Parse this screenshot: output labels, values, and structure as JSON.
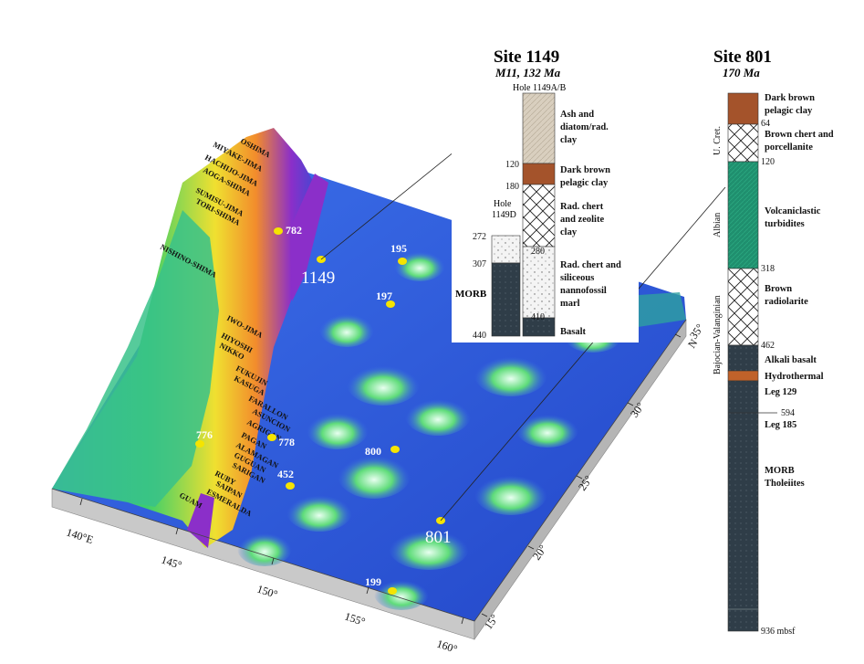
{
  "colors": {
    "ocean_deep": "#2c4fd6",
    "ocean_mid": "#3a6fe6",
    "ridge_green": "#35c46a",
    "ridge_yellow": "#f2e534",
    "ridge_orange": "#ef8a2a",
    "trench_purple": "#8b2fc9",
    "site_marker": "#f5e400",
    "base_gray": "#c9c9c9",
    "clay_brown": "#a4532b",
    "ash_tan": "#d9cfbf",
    "basalt_dark": "#2f3d48",
    "volcaniclastic_green": "#1f8f6e",
    "hydrothermal_orange": "#c0622a"
  },
  "map": {
    "islands": [
      "OSHIMA",
      "MIYAKE-JIMA",
      "HACHIJO-JIMA",
      "AOGA-SHIMA",
      "SUMISU-JIMA",
      "TORI-SHIMA",
      "NISHINO-SHIMA",
      "IWO-JIMA",
      "HIYOSHI",
      "NIKKO",
      "FUKUJIN",
      "KASUGA",
      "FARALLON",
      "ASUNCION",
      "AGRIGAN",
      "PAGAN",
      "ALAMAGAN",
      "GUGUAN",
      "SARIGAN",
      "RUBY",
      "SAIPAN",
      "ESMERALDA",
      "GUAM"
    ],
    "sites": [
      "782",
      "195",
      "1149",
      "197",
      "776",
      "778",
      "452",
      "800",
      "801",
      "199"
    ],
    "lon_ticks": [
      "140°E",
      "145°",
      "150°",
      "155°",
      "160°"
    ],
    "lat_ticks": [
      "35°",
      "N",
      "30°",
      "25°",
      "20°",
      "15°"
    ]
  },
  "site1149": {
    "title": "Site 1149",
    "subtitle": "M11, 132 Ma",
    "hole_ab": "Hole 1149A/B",
    "hole_d": "Hole\n1149D",
    "hole_d_line1": "Hole",
    "hole_d_line2": "1149D",
    "morb": "MORB",
    "depths_ab": [
      "120",
      "180",
      "280",
      "410"
    ],
    "depths_d": [
      "272",
      "307",
      "440"
    ],
    "units": [
      {
        "l1": "Ash and",
        "l2": "diatom/rad.",
        "l3": "clay"
      },
      {
        "l1": "Dark brown",
        "l2": "pelagic clay",
        "l3": ""
      },
      {
        "l1": "Rad. chert",
        "l2": "and zeolite",
        "l3": "clay"
      },
      {
        "l1": "Rad. chert and",
        "l2": "siliceous",
        "l3": "nannofossil",
        "l4": "marl"
      },
      {
        "l1": "Basalt",
        "l2": "",
        "l3": ""
      }
    ]
  },
  "site801": {
    "title": "Site 801",
    "subtitle": "170 Ma",
    "ages": [
      "U. Cret.",
      "Albian",
      "Bajocian-Valanginian"
    ],
    "depths": [
      "64",
      "120",
      "318",
      "462",
      "594",
      "936 mbsf"
    ],
    "units": [
      {
        "l1": "Dark brown",
        "l2": "pelagic clay"
      },
      {
        "l1": "Brown chert and",
        "l2": "porcellanite"
      },
      {
        "l1": "Volcaniclastic",
        "l2": "turbidites"
      },
      {
        "l1": "Brown",
        "l2": "radiolarite"
      },
      {
        "l1": "Alkali basalt",
        "l2": ""
      },
      {
        "l1": "Hydrothermal",
        "l2": ""
      },
      {
        "l1": "Leg 129",
        "l2": ""
      },
      {
        "l1": "Leg 185",
        "l2": ""
      },
      {
        "l1": "MORB",
        "l2": "Tholeiites"
      }
    ]
  }
}
